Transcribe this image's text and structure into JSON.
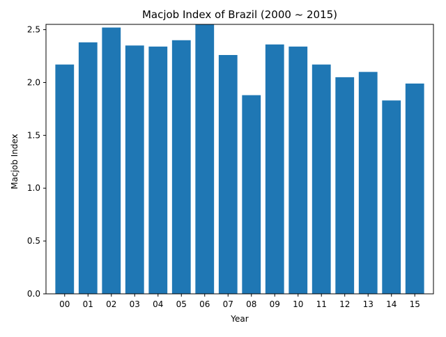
{
  "chart_data": {
    "type": "bar",
    "title": "Macjob Index of Brazil (2000 ~ 2015)",
    "xlabel": "Year",
    "ylabel": "Macjob Index",
    "categories": [
      "00",
      "01",
      "02",
      "03",
      "04",
      "05",
      "06",
      "07",
      "08",
      "09",
      "10",
      "11",
      "12",
      "13",
      "14",
      "15"
    ],
    "values": [
      2.17,
      2.38,
      2.52,
      2.35,
      2.34,
      2.4,
      2.55,
      2.26,
      1.88,
      2.36,
      2.34,
      2.17,
      2.05,
      2.1,
      1.83,
      1.99
    ],
    "ylim": [
      0,
      2.55
    ],
    "yticks": [
      0.0,
      0.5,
      1.0,
      1.5,
      2.0,
      2.5
    ],
    "ytick_labels": [
      "0.0",
      "0.5",
      "1.0",
      "1.5",
      "2.0",
      "2.5"
    ],
    "bar_color": "#1f77b4",
    "grid": false,
    "legend": "none"
  }
}
